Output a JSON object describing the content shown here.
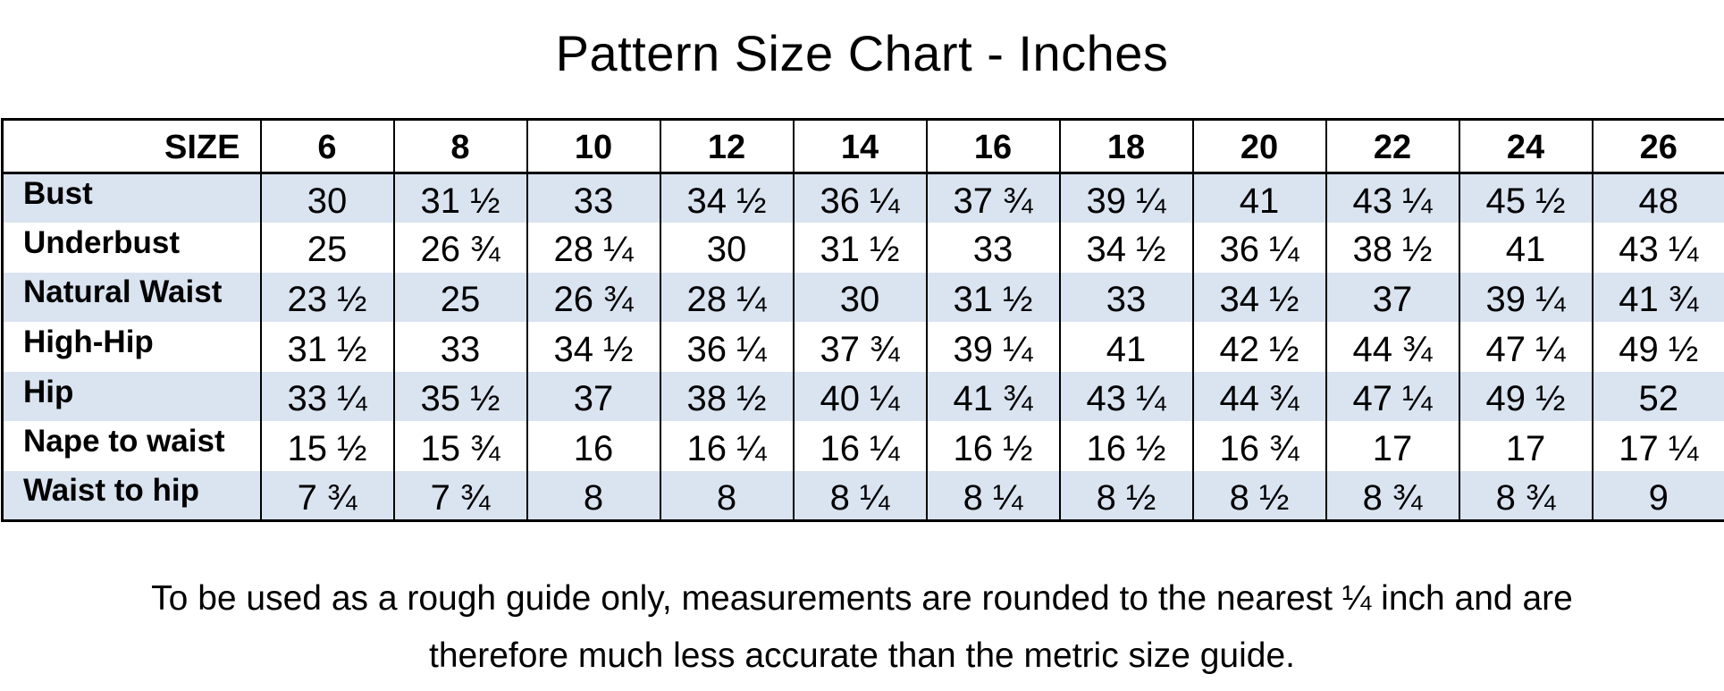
{
  "title": "Pattern Size Chart - Inches",
  "table": {
    "corner_label": "SIZE",
    "sizes": [
      "6",
      "8",
      "10",
      "12",
      "14",
      "16",
      "18",
      "20",
      "22",
      "24",
      "26"
    ],
    "rows": [
      {
        "label": "Bust",
        "values": [
          "30",
          "31 ½",
          "33",
          "34 ½",
          "36 ¼",
          "37 ¾",
          "39 ¼",
          "41",
          "43 ¼",
          "45 ½",
          "48"
        ]
      },
      {
        "label": "Underbust",
        "values": [
          "25",
          "26 ¾",
          "28 ¼",
          "30",
          "31 ½",
          "33",
          "34 ½",
          "36 ¼",
          "38 ½",
          "41",
          "43 ¼"
        ]
      },
      {
        "label": "Natural Waist",
        "values": [
          "23 ½",
          "25",
          "26 ¾",
          "28 ¼",
          "30",
          "31 ½",
          "33",
          "34 ½",
          "37",
          "39 ¼",
          "41 ¾"
        ]
      },
      {
        "label": "High-Hip",
        "values": [
          "31 ½",
          "33",
          "34 ½",
          "36 ¼",
          "37 ¾",
          "39 ¼",
          "41",
          "42 ½",
          "44 ¾",
          "47 ¼",
          "49 ½"
        ]
      },
      {
        "label": "Hip",
        "values": [
          "33 ¼",
          "35 ½",
          "37",
          "38 ½",
          "40 ¼",
          "41 ¾",
          "43 ¼",
          "44 ¾",
          "47 ¼",
          "49 ½",
          "52"
        ]
      },
      {
        "label": "Nape to waist",
        "values": [
          "15 ½",
          "15 ¾",
          "16",
          "16 ¼",
          "16 ¼",
          "16 ½",
          "16 ½",
          "16 ¾",
          "17",
          "17",
          "17 ¼"
        ]
      },
      {
        "label": "Waist to hip",
        "values": [
          "7 ¾",
          "7 ¾",
          "8",
          "8",
          "8 ¼",
          "8 ¼",
          "8 ½",
          "8 ½",
          "8 ¾",
          "8 ¾",
          "9"
        ]
      }
    ]
  },
  "footnote": {
    "line1": "To be used as a rough guide only, measurements are rounded to the nearest ¼ inch and are",
    "line2": "therefore much less accurate than the metric size guide."
  },
  "colors": {
    "shaded_row": "#dae3f0",
    "border": "#000000",
    "background": "#ffffff"
  }
}
